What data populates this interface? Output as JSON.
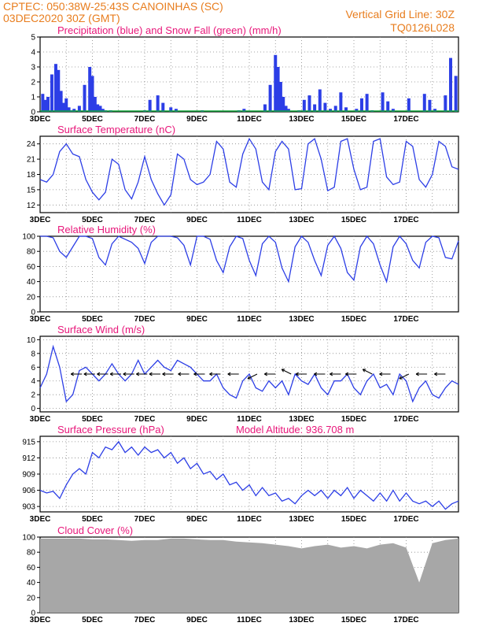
{
  "header": {
    "left_line1": "CPTEC:   050:38W-25:43S   CANOINHAS (SC)",
    "left_line2": "03DEC2020 30Z (GMT)",
    "right_line1": "Vertical Grid Line: 30Z",
    "right_line2": "TQ0126L028"
  },
  "colors": {
    "header": "#e87d1e",
    "panel_title": "#e8177a",
    "series": "#2c3ee6",
    "snow": "#11a83a",
    "cloud": "#a7a7a7"
  },
  "x_days": [
    "3DEC",
    "5DEC",
    "7DEC",
    "9DEC",
    "11DEC",
    "13DEC",
    "15DEC",
    "17DEC"
  ],
  "chart_data": [
    {
      "type": "bar",
      "title": "Precipitation (blue) and Snow Fall (green) (mm/h)",
      "ylim": [
        0,
        5
      ],
      "yticks": [
        "0",
        "1",
        "2",
        "3",
        "4",
        "5"
      ],
      "x_start": "3DEC",
      "x_end": "19DEC",
      "series": [
        {
          "name": "blue",
          "values_hourly_note": "daily bursts",
          "x": [
            0.1,
            0.2,
            0.3,
            0.45,
            0.6,
            0.7,
            0.8,
            0.9,
            1.0,
            1.1,
            1.2,
            1.3,
            1.5,
            1.7,
            1.9,
            2.0,
            2.1,
            2.2,
            2.3,
            2.4,
            2.5,
            2.7,
            2.9,
            3.2,
            3.5,
            3.8,
            4.0,
            4.2,
            4.5,
            4.7,
            5.0,
            5.2,
            5.5,
            5.8,
            6.0,
            6.2,
            6.5,
            6.8,
            7.0,
            7.2,
            7.4,
            7.6,
            7.8,
            8.0,
            8.2,
            8.4,
            8.6,
            8.8,
            9.0,
            9.1,
            9.2,
            9.3,
            9.4,
            9.5,
            9.7,
            9.9,
            10.1,
            10.3,
            10.5,
            10.7,
            10.9,
            11.1,
            11.3,
            11.5,
            11.7,
            11.9,
            12.1,
            12.3,
            12.5,
            12.7,
            12.9,
            13.1,
            13.3,
            13.5,
            13.7,
            13.9,
            14.1,
            14.3,
            14.5,
            14.7,
            14.9,
            15.1,
            15.3,
            15.5,
            15.7,
            15.9
          ],
          "values": [
            1.2,
            0.8,
            1.0,
            2.5,
            3.2,
            2.8,
            1.4,
            0.6,
            0.9,
            0.3,
            0.1,
            0.2,
            0.4,
            1.8,
            3.0,
            2.4,
            1.0,
            0.5,
            0.4,
            0.2,
            0.1,
            0.1,
            0.0,
            0.0,
            0.0,
            0.0,
            0.1,
            0.8,
            1.1,
            0.6,
            0.3,
            0.2,
            0.0,
            0.0,
            0.0,
            0.1,
            0.0,
            0.0,
            0.0,
            0.0,
            0.0,
            0.1,
            0.2,
            0.0,
            0.0,
            0.0,
            0.5,
            1.8,
            3.8,
            3.0,
            2.0,
            1.0,
            0.4,
            0.2,
            0.0,
            0.1,
            0.8,
            1.1,
            0.5,
            1.5,
            0.6,
            0.2,
            0.4,
            1.3,
            0.3,
            0.0,
            0.2,
            0.9,
            1.2,
            0.1,
            0.0,
            1.3,
            0.7,
            0.2,
            0.0,
            0.0,
            0.9,
            0.0,
            0.0,
            1.2,
            0.8,
            0.2,
            0.0,
            1.1,
            3.6,
            2.4
          ]
        },
        {
          "name": "green",
          "x": [],
          "values": []
        }
      ]
    },
    {
      "type": "line",
      "title": "Surface Temperature (nC)",
      "ylim": [
        10.5,
        25.5
      ],
      "yticks": [
        "12",
        "15",
        "18",
        "21",
        "24"
      ],
      "x": [
        0,
        0.25,
        0.5,
        0.75,
        1,
        1.25,
        1.5,
        1.75,
        2,
        2.25,
        2.5,
        2.75,
        3,
        3.25,
        3.5,
        3.75,
        4,
        4.25,
        4.5,
        4.75,
        5,
        5.25,
        5.5,
        5.75,
        6,
        6.25,
        6.5,
        6.75,
        7,
        7.25,
        7.5,
        7.75,
        8,
        8.25,
        8.5,
        8.75,
        9,
        9.25,
        9.5,
        9.75,
        10,
        10.25,
        10.5,
        10.75,
        11,
        11.25,
        11.5,
        11.75,
        12,
        12.25,
        12.5,
        12.75,
        13,
        13.25,
        13.5,
        13.75,
        14,
        14.25,
        14.5,
        14.75,
        15,
        15.25,
        15.5,
        15.75,
        16
      ],
      "values": [
        17,
        16.5,
        18,
        22.5,
        24,
        22,
        21.5,
        17,
        14.5,
        13,
        14.5,
        21,
        20,
        15,
        13.2,
        16.5,
        21.5,
        17,
        14.2,
        12,
        14,
        22,
        21,
        17,
        16,
        16.5,
        18,
        24.5,
        23,
        16.5,
        15.5,
        22,
        25,
        23,
        16.5,
        15,
        22.5,
        24.5,
        23,
        15,
        15.2,
        24,
        25,
        21,
        14.8,
        15.5,
        24.5,
        25,
        19,
        15,
        15.5,
        24.5,
        25,
        17.5,
        16,
        16.5,
        24.5,
        23.5,
        17,
        15.5,
        18,
        24.5,
        23.5,
        19.5,
        19
      ]
    },
    {
      "type": "line",
      "title": "Relative Humidity (%)",
      "ylim": [
        0,
        100
      ],
      "yticks": [
        "0",
        "20",
        "40",
        "60",
        "80",
        "100"
      ],
      "x": [
        0,
        0.25,
        0.5,
        0.75,
        1,
        1.25,
        1.5,
        1.75,
        2,
        2.25,
        2.5,
        2.75,
        3,
        3.25,
        3.5,
        3.75,
        4,
        4.25,
        4.5,
        4.75,
        5,
        5.25,
        5.5,
        5.75,
        6,
        6.25,
        6.5,
        6.75,
        7,
        7.25,
        7.5,
        7.75,
        8,
        8.25,
        8.5,
        8.75,
        9,
        9.25,
        9.5,
        9.75,
        10,
        10.25,
        10.5,
        10.75,
        11,
        11.25,
        11.5,
        11.75,
        12,
        12.25,
        12.5,
        12.75,
        13,
        13.25,
        13.5,
        13.75,
        14,
        14.25,
        14.5,
        14.75,
        15,
        15.25,
        15.5,
        15.75,
        16
      ],
      "values": [
        100,
        100,
        98,
        80,
        72,
        86,
        100,
        100,
        97,
        72,
        62,
        90,
        100,
        96,
        92,
        84,
        64,
        92,
        100,
        100,
        100,
        98,
        88,
        62,
        100,
        100,
        96,
        68,
        52,
        86,
        100,
        97,
        68,
        48,
        90,
        100,
        92,
        58,
        40,
        86,
        100,
        92,
        68,
        48,
        88,
        100,
        84,
        52,
        42,
        86,
        100,
        90,
        62,
        40,
        86,
        100,
        90,
        68,
        58,
        92,
        100,
        98,
        72,
        70,
        94
      ]
    },
    {
      "type": "line",
      "title": "Surface Wind (m/s)",
      "ylim": [
        -0.5,
        10.5
      ],
      "yticks": [
        "0",
        "2",
        "4",
        "6",
        "8",
        "10"
      ],
      "x": [
        0,
        0.25,
        0.5,
        0.75,
        1,
        1.25,
        1.5,
        1.75,
        2,
        2.25,
        2.5,
        2.75,
        3,
        3.25,
        3.5,
        3.75,
        4,
        4.25,
        4.5,
        4.75,
        5,
        5.25,
        5.5,
        5.75,
        6,
        6.25,
        6.5,
        6.75,
        7,
        7.25,
        7.5,
        7.75,
        8,
        8.25,
        8.5,
        8.75,
        9,
        9.25,
        9.5,
        9.75,
        10,
        10.25,
        10.5,
        10.75,
        11,
        11.25,
        11.5,
        11.75,
        12,
        12.25,
        12.5,
        12.75,
        13,
        13.25,
        13.5,
        13.75,
        14,
        14.25,
        14.5,
        14.75,
        15,
        15.25,
        15.5,
        15.75,
        16
      ],
      "values": [
        3,
        5,
        9,
        6,
        1,
        2,
        5.5,
        6,
        5,
        4,
        5,
        6.5,
        5,
        4,
        5,
        7,
        5,
        6,
        7,
        6,
        5.5,
        7,
        6.5,
        6,
        5,
        4,
        4,
        5,
        3,
        2,
        1.5,
        4,
        5,
        3,
        2.5,
        4,
        3,
        4,
        2,
        5,
        4,
        3.5,
        5,
        3,
        2,
        4,
        4,
        5,
        3,
        2,
        4,
        5,
        3,
        3.5,
        2,
        5,
        4,
        1,
        3,
        4,
        2,
        1.5,
        3,
        4,
        3.5
      ],
      "arrows": [
        {
          "x": 1.6,
          "dir": "W"
        },
        {
          "x": 2.1,
          "dir": "W"
        },
        {
          "x": 2.6,
          "dir": "W"
        },
        {
          "x": 3.1,
          "dir": "W"
        },
        {
          "x": 3.6,
          "dir": "W"
        },
        {
          "x": 4.1,
          "dir": "W"
        },
        {
          "x": 4.6,
          "dir": "W"
        },
        {
          "x": 5.1,
          "dir": "W"
        },
        {
          "x": 5.7,
          "dir": "W"
        },
        {
          "x": 6.3,
          "dir": "W"
        },
        {
          "x": 6.9,
          "dir": "W"
        },
        {
          "x": 7.6,
          "dir": "W"
        },
        {
          "x": 8.3,
          "dir": "SW"
        },
        {
          "x": 9.0,
          "dir": "W"
        },
        {
          "x": 9.6,
          "dir": "NW"
        },
        {
          "x": 10.2,
          "dir": "W"
        },
        {
          "x": 10.9,
          "dir": "W"
        },
        {
          "x": 11.5,
          "dir": "W"
        },
        {
          "x": 12.1,
          "dir": "W"
        },
        {
          "x": 12.7,
          "dir": "NW"
        },
        {
          "x": 13.4,
          "dir": "W"
        },
        {
          "x": 14.1,
          "dir": "SW"
        },
        {
          "x": 14.8,
          "dir": "W"
        },
        {
          "x": 15.5,
          "dir": "W"
        }
      ]
    },
    {
      "type": "line",
      "title": "Surface Pressure (hPa)",
      "annotation": "Model Altitude: 936.708 m",
      "ylim": [
        902,
        916
      ],
      "yticks": [
        "903",
        "906",
        "909",
        "912",
        "915"
      ],
      "x": [
        0,
        0.25,
        0.5,
        0.75,
        1,
        1.25,
        1.5,
        1.75,
        2,
        2.25,
        2.5,
        2.75,
        3,
        3.25,
        3.5,
        3.75,
        4,
        4.25,
        4.5,
        4.75,
        5,
        5.25,
        5.5,
        5.75,
        6,
        6.25,
        6.5,
        6.75,
        7,
        7.25,
        7.5,
        7.75,
        8,
        8.25,
        8.5,
        8.75,
        9,
        9.25,
        9.5,
        9.75,
        10,
        10.25,
        10.5,
        10.75,
        11,
        11.25,
        11.5,
        11.75,
        12,
        12.25,
        12.5,
        12.75,
        13,
        13.25,
        13.5,
        13.75,
        14,
        14.25,
        14.5,
        14.75,
        15,
        15.25,
        15.5,
        15.75,
        16
      ],
      "values": [
        906,
        905.5,
        905.8,
        904.5,
        907,
        909,
        910,
        909,
        913,
        912,
        914,
        913.5,
        915,
        913,
        914,
        912.5,
        914,
        913,
        913.5,
        912,
        913,
        911,
        912,
        910,
        911,
        909,
        909.5,
        908,
        909,
        907,
        907.5,
        906,
        907,
        905,
        906.5,
        905,
        905.5,
        904,
        904.5,
        903.5,
        905,
        906,
        905,
        906,
        904.5,
        906,
        905,
        906.5,
        904.5,
        906,
        905,
        904,
        905.5,
        904,
        906,
        904,
        905.5,
        904,
        903.5,
        904,
        903,
        904,
        902.5,
        903.5,
        904
      ]
    },
    {
      "type": "area",
      "title": "Cloud Cover (%)",
      "ylim": [
        0,
        100
      ],
      "yticks": [
        "0",
        "20",
        "40",
        "60",
        "80",
        "100"
      ],
      "x": [
        0,
        0.5,
        1,
        1.5,
        2,
        2.5,
        3,
        3.5,
        4,
        4.5,
        5,
        5.5,
        6,
        6.5,
        7,
        7.5,
        8,
        8.5,
        9,
        9.5,
        10,
        10.5,
        11,
        11.5,
        12,
        12.5,
        13,
        13.5,
        14,
        14.5,
        15,
        15.5,
        16
      ],
      "values": [
        98,
        98,
        98,
        98,
        97,
        97,
        96,
        95,
        96,
        96,
        98,
        98,
        97,
        96,
        96,
        94,
        93,
        92,
        90,
        88,
        85,
        88,
        90,
        86,
        88,
        85,
        90,
        92,
        86,
        40,
        92,
        96,
        98
      ]
    }
  ]
}
